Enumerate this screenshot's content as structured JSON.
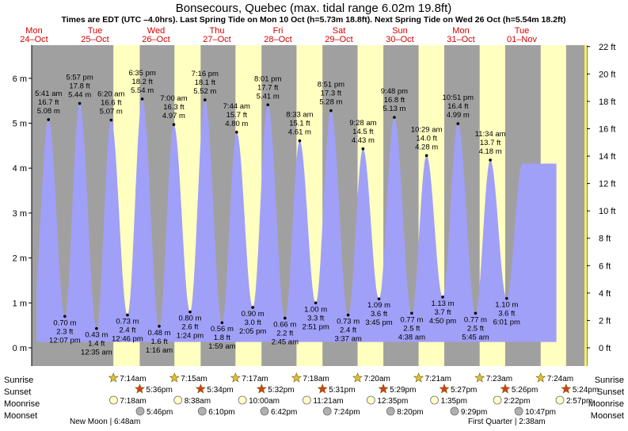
{
  "title": "Bonsecours, Quebec (max. tidal range 6.02m 19.8ft)",
  "subtitle": "Times are EDT (UTC –4.0hrs). Last Spring Tide on Mon 10 Oct (h=5.73m 18.8ft). Next Spring Tide on Wed 26 Oct (h=5.54m 18.2ft)",
  "colors": {
    "night": "#a0a0a0",
    "day": "#ffffc0",
    "water": "#a0a0f8",
    "date_text": "#d40000",
    "sun_star": "#d8c040",
    "sunset_star": "#d04020",
    "moonrise": "#ffffc8",
    "moonset": "#b0b0b0"
  },
  "days": [
    {
      "name": "Mon",
      "date": "24–Oct"
    },
    {
      "name": "Tue",
      "date": "25–Oct"
    },
    {
      "name": "Wed",
      "date": "26–Oct"
    },
    {
      "name": "Thu",
      "date": "27–Oct"
    },
    {
      "name": "Fri",
      "date": "28–Oct"
    },
    {
      "name": "Sat",
      "date": "29–Oct"
    },
    {
      "name": "Sun",
      "date": "30–Oct"
    },
    {
      "name": "Mon",
      "date": "31–Oct"
    },
    {
      "name": "Tue",
      "date": "01–Nov"
    }
  ],
  "row_labels": {
    "sunrise": "Sunrise",
    "sunset": "Sunset",
    "moonrise": "Moonrise",
    "moonset": "Moonset"
  },
  "sunrise": [
    "7:14am",
    "7:15am",
    "7:17am",
    "7:18am",
    "7:20am",
    "7:21am",
    "7:23am",
    "7:24am"
  ],
  "sunset": [
    "5:36pm",
    "5:34pm",
    "5:32pm",
    "5:31pm",
    "5:29pm",
    "5:27pm",
    "5:26pm",
    "5:24pm"
  ],
  "moonrise": [
    "7:18am",
    "8:38am",
    "10:00am",
    "11:21am",
    "12:35pm",
    "1:35pm",
    "2:22pm",
    "2:57pm"
  ],
  "moonset": [
    "5:46pm",
    "6:10pm",
    "6:42pm",
    "7:24pm",
    "8:20pm",
    "9:29pm",
    "10:47pm"
  ],
  "moon_phases": [
    "New Moon | 6:48am",
    "First Quarter | 2:38am"
  ],
  "chart_data": {
    "type": "area",
    "title": "Bonsecours, Quebec (max. tidal range 6.02m 19.8ft)",
    "ylabel_left": "m",
    "ylabel_right": "ft",
    "ylim_m": [
      -0.6,
      6.9
    ],
    "left_ticks": [
      "0 m",
      "1 m",
      "2 m",
      "3 m",
      "4 m",
      "5 m",
      "6 m"
    ],
    "right_ticks": [
      "0 ft",
      "2 ft",
      "4 ft",
      "6 ft",
      "8 ft",
      "10 ft",
      "12 ft",
      "14 ft",
      "16 ft",
      "18 ft",
      "20 ft",
      "22 ft"
    ],
    "tides": [
      {
        "type": "high",
        "time": "5:41 am",
        "m": 5.08,
        "ft": "16.7 ft",
        "m_label": "5.08 m"
      },
      {
        "type": "low",
        "time": "12:07 pm",
        "m": 0.7,
        "ft": "2.3 ft",
        "m_label": "0.70 m"
      },
      {
        "type": "high",
        "time": "5:57 pm",
        "m": 5.44,
        "ft": "17.8 ft",
        "m_label": "5.44 m"
      },
      {
        "type": "low",
        "time": "12:35 am",
        "m": 0.43,
        "ft": "1.4 ft",
        "m_label": "0.43 m"
      },
      {
        "type": "high",
        "time": "6:20 am",
        "m": 5.07,
        "ft": "16.6 ft",
        "m_label": "5.07 m"
      },
      {
        "type": "low",
        "time": "12:46 pm",
        "m": 0.73,
        "ft": "2.4 ft",
        "m_label": "0.73 m"
      },
      {
        "type": "high",
        "time": "6:35 pm",
        "m": 5.54,
        "ft": "18.2 ft",
        "m_label": "5.54 m"
      },
      {
        "type": "low",
        "time": "1:16 am",
        "m": 0.48,
        "ft": "1.6 ft",
        "m_label": "0.48 m"
      },
      {
        "type": "high",
        "time": "7:00 am",
        "m": 4.97,
        "ft": "16.3 ft",
        "m_label": "4.97 m"
      },
      {
        "type": "low",
        "time": "1:24 pm",
        "m": 0.8,
        "ft": "2.6 ft",
        "m_label": "0.80 m"
      },
      {
        "type": "high",
        "time": "7:16 pm",
        "m": 5.52,
        "ft": "18.1 ft",
        "m_label": "5.52 m"
      },
      {
        "type": "low",
        "time": "1:59 am",
        "m": 0.56,
        "ft": "1.8 ft",
        "m_label": "0.56 m"
      },
      {
        "type": "high",
        "time": "7:44 am",
        "m": 4.8,
        "ft": "15.7 ft",
        "m_label": "4.80 m"
      },
      {
        "type": "low",
        "time": "2:05 pm",
        "m": 0.9,
        "ft": "3.0 ft",
        "m_label": "0.90 m"
      },
      {
        "type": "high",
        "time": "8:01 pm",
        "m": 5.41,
        "ft": "17.7 ft",
        "m_label": "5.41 m"
      },
      {
        "type": "low",
        "time": "2:45 am",
        "m": 0.66,
        "ft": "2.2 ft",
        "m_label": "0.66 m"
      },
      {
        "type": "high",
        "time": "8:33 am",
        "m": 4.61,
        "ft": "15.1 ft",
        "m_label": "4.61 m"
      },
      {
        "type": "low",
        "time": "2:51 pm",
        "m": 1.0,
        "ft": "3.3 ft",
        "m_label": "1.00 m"
      },
      {
        "type": "high",
        "time": "8:51 pm",
        "m": 5.28,
        "ft": "17.3 ft",
        "m_label": "5.28 m"
      },
      {
        "type": "low",
        "time": "3:37 am",
        "m": 0.73,
        "ft": "2.4 ft",
        "m_label": "0.73 m"
      },
      {
        "type": "high",
        "time": "9:28 am",
        "m": 4.43,
        "ft": "14.5 ft",
        "m_label": "4.43 m"
      },
      {
        "type": "low",
        "time": "3:45 pm",
        "m": 1.09,
        "ft": "3.6 ft",
        "m_label": "1.09 m"
      },
      {
        "type": "high",
        "time": "9:48 pm",
        "m": 5.13,
        "ft": "16.8 ft",
        "m_label": "5.13 m"
      },
      {
        "type": "low",
        "time": "4:38 am",
        "m": 0.77,
        "ft": "2.5 ft",
        "m_label": "0.77 m"
      },
      {
        "type": "high",
        "time": "10:29 am",
        "m": 4.28,
        "ft": "14.0 ft",
        "m_label": "4.28 m"
      },
      {
        "type": "low",
        "time": "4:50 pm",
        "m": 1.13,
        "ft": "3.7 ft",
        "m_label": "1.13 m"
      },
      {
        "type": "high",
        "time": "10:51 pm",
        "m": 4.99,
        "ft": "16.4 ft",
        "m_label": "4.99 m"
      },
      {
        "type": "low",
        "time": "5:45 am",
        "m": 0.77,
        "ft": "2.5 ft",
        "m_label": "0.77 m"
      },
      {
        "type": "high",
        "time": "11:34 am",
        "m": 4.18,
        "ft": "13.7 ft",
        "m_label": "4.18 m"
      },
      {
        "type": "low",
        "time": "6:01 pm",
        "m": 1.1,
        "ft": "3.6 ft",
        "m_label": "1.10 m"
      }
    ]
  }
}
